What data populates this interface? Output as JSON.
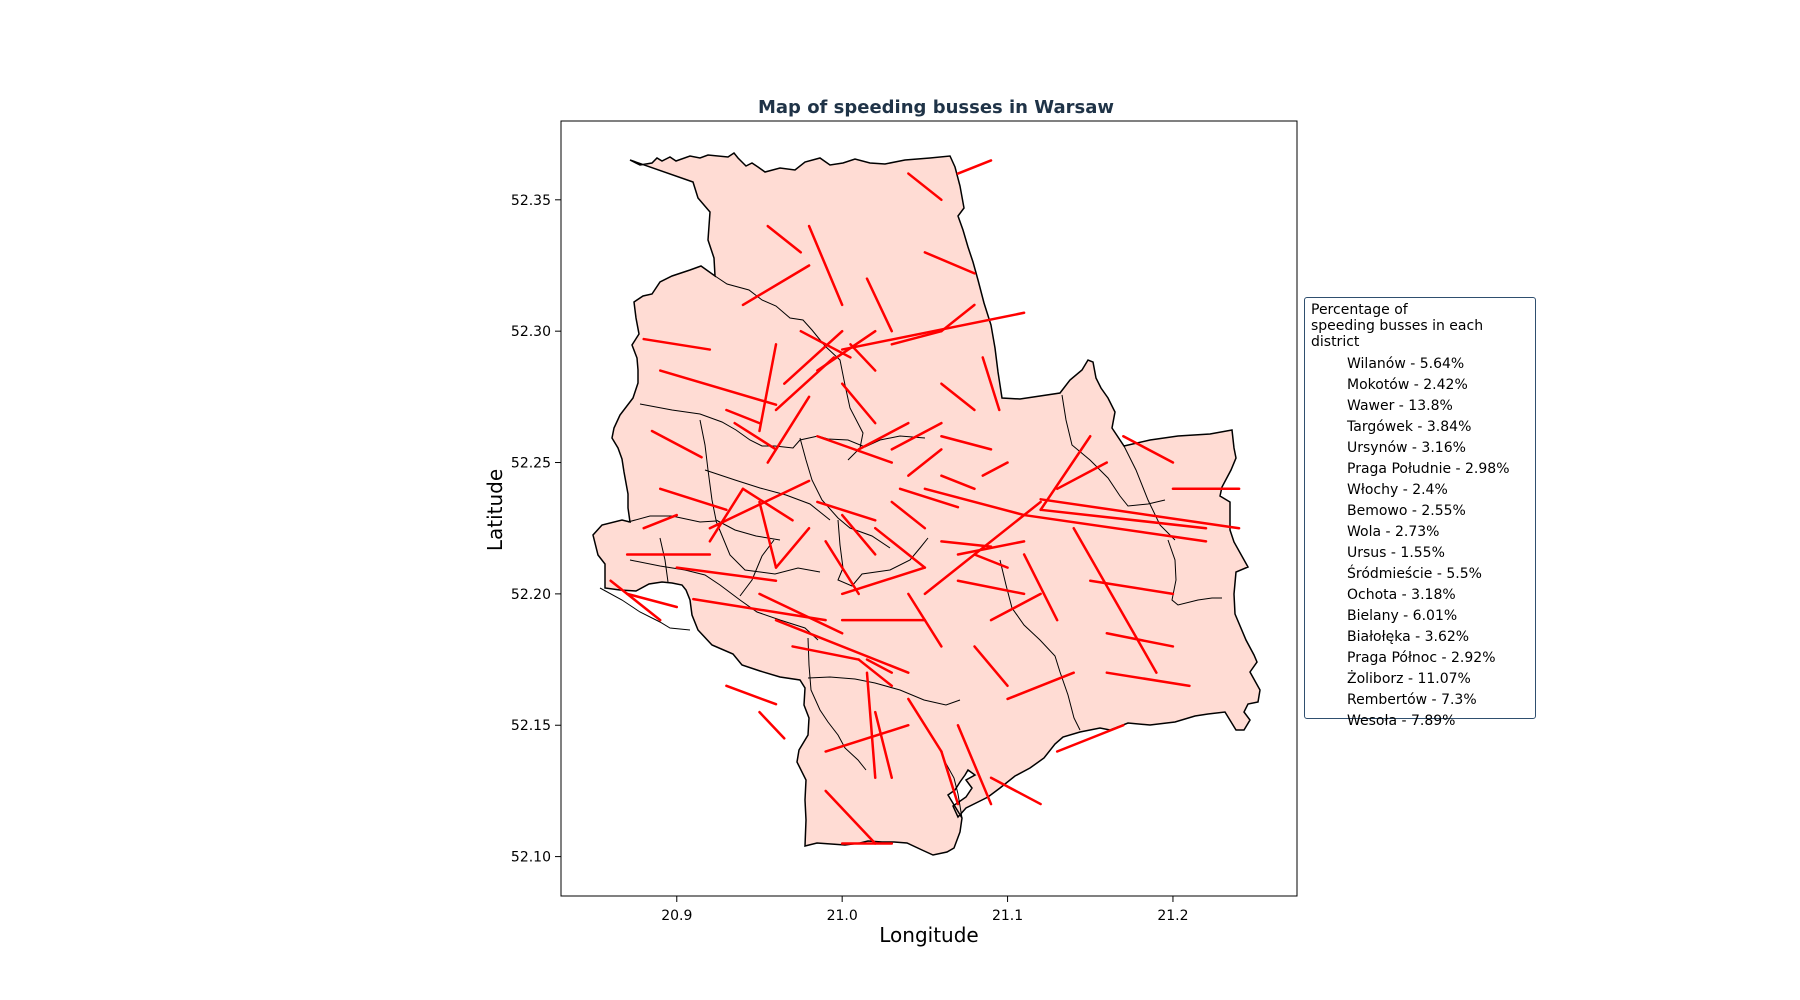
{
  "title": "Map of speeding busses in Warsaw",
  "xlabel": "Longitude",
  "ylabel": "Latitude",
  "x_ticks": [
    "20.9",
    "21.0",
    "21.1",
    "21.2"
  ],
  "y_ticks": [
    "52.35",
    "52.30",
    "52.25",
    "52.20",
    "52.15",
    "52.10"
  ],
  "colors": {
    "district_fill": "#ffdcd4",
    "district_border": "#000000",
    "speeding_segment": "#ff0000",
    "title": "#1f3347"
  },
  "legend": {
    "title_line1": "Percentage of",
    "title_line2": "speeding busses in each district",
    "placement": "right, outside plot",
    "entries": [
      "Wilanów - 5.64%",
      "Mokotów - 2.42%",
      "Wawer - 13.8%",
      "Targówek - 3.84%",
      "Ursynów - 3.16%",
      "Praga Południe - 2.98%",
      "Włochy - 2.4%",
      "Bemowo - 2.55%",
      "Wola - 2.73%",
      "Ursus - 1.55%",
      "Śródmieście - 5.5%",
      "Ochota - 3.18%",
      "Bielany - 6.01%",
      "Białołęka - 3.62%",
      "Praga Północ - 2.92%",
      "Żoliborz - 11.07%",
      "Rembertów - 7.3%",
      "Wesoła - 7.89%"
    ]
  },
  "chart_data": {
    "type": "map",
    "title": "Map of speeding busses in Warsaw",
    "xlabel": "Longitude",
    "ylabel": "Latitude",
    "xlim": [
      20.83,
      21.275
    ],
    "ylim": [
      52.085,
      52.38
    ],
    "x_ticks": [
      20.9,
      21.0,
      21.1,
      21.2
    ],
    "y_ticks": [
      52.35,
      52.3,
      52.25,
      52.2,
      52.15,
      52.1
    ],
    "grid": false,
    "districts": [
      {
        "name": "Wilanów",
        "speeding_percent": 5.64
      },
      {
        "name": "Mokotów",
        "speeding_percent": 2.42
      },
      {
        "name": "Wawer",
        "speeding_percent": 13.8
      },
      {
        "name": "Targówek",
        "speeding_percent": 3.84
      },
      {
        "name": "Ursynów",
        "speeding_percent": 3.16
      },
      {
        "name": "Praga Południe",
        "speeding_percent": 2.98
      },
      {
        "name": "Włochy",
        "speeding_percent": 2.4
      },
      {
        "name": "Bemowo",
        "speeding_percent": 2.55
      },
      {
        "name": "Wola",
        "speeding_percent": 2.73
      },
      {
        "name": "Ursus",
        "speeding_percent": 1.55
      },
      {
        "name": "Śródmieście",
        "speeding_percent": 5.5
      },
      {
        "name": "Ochota",
        "speeding_percent": 3.18
      },
      {
        "name": "Bielany",
        "speeding_percent": 6.01
      },
      {
        "name": "Białołęka",
        "speeding_percent": 3.62
      },
      {
        "name": "Praga Północ",
        "speeding_percent": 2.92
      },
      {
        "name": "Żoliborz",
        "speeding_percent": 11.07
      },
      {
        "name": "Rembertów",
        "speeding_percent": 7.3
      },
      {
        "name": "Wesoła",
        "speeding_percent": 7.89
      }
    ],
    "speeding_segments": [
      [
        [
          20.88,
          52.297
        ],
        [
          20.92,
          52.293
        ]
      ],
      [
        [
          20.89,
          52.285
        ],
        [
          20.96,
          52.272
        ]
      ],
      [
        [
          20.885,
          52.262
        ],
        [
          20.915,
          52.252
        ]
      ],
      [
        [
          20.935,
          52.265
        ],
        [
          20.96,
          52.255
        ]
      ],
      [
        [
          20.89,
          52.24
        ],
        [
          20.93,
          52.232
        ]
      ],
      [
        [
          20.92,
          52.225
        ],
        [
          20.98,
          52.243
        ]
      ],
      [
        [
          20.9,
          52.21
        ],
        [
          20.96,
          52.205
        ]
      ],
      [
        [
          20.91,
          52.198
        ],
        [
          20.99,
          52.19
        ]
      ],
      [
        [
          20.87,
          52.2
        ],
        [
          20.9,
          52.195
        ]
      ],
      [
        [
          20.86,
          52.205
        ],
        [
          20.89,
          52.19
        ]
      ],
      [
        [
          20.93,
          52.165
        ],
        [
          20.96,
          52.158
        ]
      ],
      [
        [
          20.95,
          52.155
        ],
        [
          20.965,
          52.145
        ]
      ],
      [
        [
          20.95,
          52.262
        ],
        [
          20.96,
          52.295
        ]
      ],
      [
        [
          20.96,
          52.27
        ],
        [
          20.995,
          52.29
        ]
      ],
      [
        [
          20.985,
          52.285
        ],
        [
          21.02,
          52.3
        ]
      ],
      [
        [
          21.0,
          52.293
        ],
        [
          21.11,
          52.307
        ]
      ],
      [
        [
          20.955,
          52.25
        ],
        [
          20.98,
          52.275
        ]
      ],
      [
        [
          20.965,
          52.28
        ],
        [
          21.0,
          52.3
        ]
      ],
      [
        [
          20.975,
          52.3
        ],
        [
          21.005,
          52.29
        ]
      ],
      [
        [
          21.005,
          52.295
        ],
        [
          21.02,
          52.285
        ]
      ],
      [
        [
          21.0,
          52.28
        ],
        [
          21.02,
          52.265
        ]
      ],
      [
        [
          21.015,
          52.32
        ],
        [
          21.03,
          52.3
        ]
      ],
      [
        [
          21.03,
          52.295
        ],
        [
          21.06,
          52.3
        ]
      ],
      [
        [
          21.06,
          52.3
        ],
        [
          21.08,
          52.31
        ]
      ],
      [
        [
          20.94,
          52.31
        ],
        [
          20.98,
          52.325
        ]
      ],
      [
        [
          20.955,
          52.34
        ],
        [
          20.975,
          52.33
        ]
      ],
      [
        [
          20.98,
          52.34
        ],
        [
          21.0,
          52.31
        ]
      ],
      [
        [
          21.05,
          52.33
        ],
        [
          21.08,
          52.322
        ]
      ],
      [
        [
          21.04,
          52.36
        ],
        [
          21.06,
          52.35
        ]
      ],
      [
        [
          21.07,
          52.36
        ],
        [
          21.09,
          52.365
        ]
      ],
      [
        [
          21.06,
          52.28
        ],
        [
          21.08,
          52.27
        ]
      ],
      [
        [
          21.085,
          52.29
        ],
        [
          21.095,
          52.27
        ]
      ],
      [
        [
          20.985,
          52.235
        ],
        [
          21.02,
          52.228
        ]
      ],
      [
        [
          20.985,
          52.26
        ],
        [
          21.03,
          52.25
        ]
      ],
      [
        [
          21.03,
          52.255
        ],
        [
          21.06,
          52.265
        ]
      ],
      [
        [
          21.035,
          52.24
        ],
        [
          21.07,
          52.233
        ]
      ],
      [
        [
          21.05,
          52.24
        ],
        [
          21.11,
          52.23
        ]
      ],
      [
        [
          21.06,
          52.22
        ],
        [
          21.09,
          52.218
        ]
      ],
      [
        [
          21.07,
          52.205
        ],
        [
          21.11,
          52.2
        ]
      ],
      [
        [
          21.11,
          52.23
        ],
        [
          21.22,
          52.22
        ]
      ],
      [
        [
          21.12,
          52.232
        ],
        [
          21.22,
          52.225
        ]
      ],
      [
        [
          21.12,
          52.236
        ],
        [
          21.24,
          52.225
        ]
      ],
      [
        [
          21.12,
          52.232
        ],
        [
          21.15,
          52.26
        ]
      ],
      [
        [
          21.13,
          52.24
        ],
        [
          21.16,
          52.25
        ]
      ],
      [
        [
          21.2,
          52.24
        ],
        [
          21.24,
          52.24
        ]
      ],
      [
        [
          21.17,
          52.26
        ],
        [
          21.2,
          52.25
        ]
      ],
      [
        [
          21.05,
          52.2
        ],
        [
          21.12,
          52.235
        ]
      ],
      [
        [
          21.07,
          52.215
        ],
        [
          21.11,
          52.22
        ]
      ],
      [
        [
          21.14,
          52.225
        ],
        [
          21.19,
          52.17
        ]
      ],
      [
        [
          21.15,
          52.205
        ],
        [
          21.2,
          52.2
        ]
      ],
      [
        [
          21.16,
          52.185
        ],
        [
          21.2,
          52.18
        ]
      ],
      [
        [
          21.16,
          52.17
        ],
        [
          21.21,
          52.165
        ]
      ],
      [
        [
          21.09,
          52.19
        ],
        [
          21.12,
          52.2
        ]
      ],
      [
        [
          21.1,
          52.16
        ],
        [
          21.14,
          52.17
        ]
      ],
      [
        [
          21.13,
          52.14
        ],
        [
          21.17,
          52.15
        ]
      ],
      [
        [
          21.07,
          52.15
        ],
        [
          21.09,
          52.12
        ]
      ],
      [
        [
          21.06,
          52.14
        ],
        [
          21.07,
          52.12
        ]
      ],
      [
        [
          21.09,
          52.13
        ],
        [
          21.12,
          52.12
        ]
      ],
      [
        [
          20.99,
          52.125
        ],
        [
          21.02,
          52.105
        ]
      ],
      [
        [
          21.0,
          52.105
        ],
        [
          21.03,
          52.105
        ]
      ],
      [
        [
          20.99,
          52.14
        ],
        [
          21.04,
          52.15
        ]
      ],
      [
        [
          21.02,
          52.155
        ],
        [
          21.03,
          52.13
        ]
      ],
      [
        [
          21.015,
          52.175
        ],
        [
          21.03,
          52.17
        ]
      ],
      [
        [
          21.015,
          52.17
        ],
        [
          21.02,
          52.13
        ]
      ],
      [
        [
          21.0,
          52.19
        ],
        [
          21.05,
          52.19
        ]
      ],
      [
        [
          21.0,
          52.2
        ],
        [
          21.05,
          52.21
        ]
      ],
      [
        [
          21.04,
          52.2
        ],
        [
          21.06,
          52.18
        ]
      ],
      [
        [
          20.97,
          52.18
        ],
        [
          21.01,
          52.175
        ]
      ],
      [
        [
          21.01,
          52.175
        ],
        [
          21.03,
          52.165
        ]
      ],
      [
        [
          20.95,
          52.2
        ],
        [
          21.0,
          52.185
        ]
      ],
      [
        [
          20.96,
          52.19
        ],
        [
          21.04,
          52.17
        ]
      ],
      [
        [
          21.0,
          52.23
        ],
        [
          21.02,
          52.215
        ]
      ],
      [
        [
          21.02,
          52.225
        ],
        [
          21.05,
          52.21
        ]
      ],
      [
        [
          21.04,
          52.245
        ],
        [
          21.06,
          52.255
        ]
      ],
      [
        [
          21.01,
          52.255
        ],
        [
          21.04,
          52.265
        ]
      ],
      [
        [
          21.06,
          52.26
        ],
        [
          21.09,
          52.255
        ]
      ],
      [
        [
          21.08,
          52.215
        ],
        [
          21.1,
          52.21
        ]
      ],
      [
        [
          21.11,
          52.215
        ],
        [
          21.13,
          52.19
        ]
      ],
      [
        [
          21.04,
          52.16
        ],
        [
          21.06,
          52.14
        ]
      ],
      [
        [
          21.08,
          52.18
        ],
        [
          21.1,
          52.165
        ]
      ],
      [
        [
          20.94,
          52.24
        ],
        [
          20.97,
          52.228
        ]
      ],
      [
        [
          20.92,
          52.22
        ],
        [
          20.94,
          52.24
        ]
      ],
      [
        [
          20.87,
          52.215
        ],
        [
          20.92,
          52.215
        ]
      ],
      [
        [
          20.88,
          52.225
        ],
        [
          20.9,
          52.23
        ]
      ],
      [
        [
          20.96,
          52.21
        ],
        [
          20.98,
          52.225
        ]
      ],
      [
        [
          20.99,
          52.22
        ],
        [
          21.01,
          52.2
        ]
      ],
      [
        [
          20.93,
          52.27
        ],
        [
          20.95,
          52.265
        ]
      ],
      [
        [
          20.95,
          52.235
        ],
        [
          20.96,
          52.21
        ]
      ],
      [
        [
          21.03,
          52.235
        ],
        [
          21.05,
          52.225
        ]
      ],
      [
        [
          21.06,
          52.245
        ],
        [
          21.08,
          52.24
        ]
      ],
      [
        [
          21.085,
          52.245
        ],
        [
          21.1,
          52.25
        ]
      ]
    ]
  }
}
